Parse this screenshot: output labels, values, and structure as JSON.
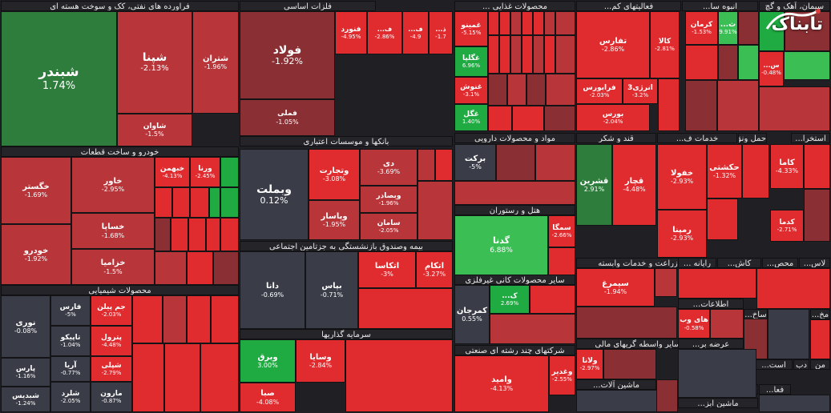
{
  "brand": {
    "logo_text": "تابناک"
  },
  "colors": {
    "dg": "#2e7d3c",
    "g": "#1faa42",
    "lg": "#3bbf55",
    "dr": "#8a2f33",
    "r": "#b8353a",
    "br": "#e02b2f",
    "neutral": "#3a3d48"
  },
  "chart_data": {
    "type": "heatmap",
    "title": "",
    "sectors": [
      {
        "name": "فراورده های نفتی، کک و سوخت هسته ای",
        "stocks": [
          {
            "name": "شبندر",
            "change": "1.74%",
            "value": 1.74
          },
          {
            "name": "شپنا",
            "change": "-2.13%",
            "value": -2.13
          },
          {
            "name": "شتران",
            "change": "-1.96%",
            "value": -1.96
          },
          {
            "name": "شاوان",
            "change": "-1.5%",
            "value": -1.5
          }
        ]
      },
      {
        "name": "فلزات اساسی",
        "stocks": [
          {
            "name": "فولاد",
            "change": "-1.92%",
            "value": -1.92
          },
          {
            "name": "فملی",
            "change": "-1.05%",
            "value": -1.05
          },
          {
            "name": "فنورد",
            "change": "-4.95%",
            "value": -4.95
          },
          {
            "name": "ف...",
            "change": "-2.86%",
            "value": -2.86
          },
          {
            "name": "ف...",
            "change": "-4.9",
            "value": -4.9
          },
          {
            "name": "ذ...",
            "change": "-1.7",
            "value": -1.7
          }
        ]
      },
      {
        "name": "محصولات غذایی ...",
        "stocks": [
          {
            "name": "غمینو",
            "change": "-5.15%",
            "value": -5.15
          },
          {
            "name": "غگلپا",
            "change": "6.96%",
            "value": 6.96
          },
          {
            "name": "غنوش",
            "change": "-3.1%",
            "value": -3.1
          },
          {
            "name": "غگل",
            "change": "1.40%",
            "value": 1.4
          }
        ]
      },
      {
        "name": "فعالیتهای کم...",
        "stocks": [
          {
            "name": "تفارس",
            "change": "-2.86%",
            "value": -2.86
          },
          {
            "name": "کالا",
            "change": "-2.81%",
            "value": -2.81
          },
          {
            "name": "فرابورس",
            "change": "-2.03%",
            "value": -2.03
          },
          {
            "name": "انرژی3",
            "change": "-3.2%",
            "value": -3.2
          },
          {
            "name": "بورس",
            "change": "-2.04%",
            "value": -2.04
          }
        ]
      },
      {
        "name": "انبوه سا...",
        "stocks": [
          {
            "name": "کرمان",
            "change": "-1.53%",
            "value": -1.53
          },
          {
            "name": "ث...",
            "change": "9.91%",
            "value": 9.91
          },
          {
            "name": "س...",
            "change": "-0.48%",
            "value": -0.48
          }
        ]
      },
      {
        "name": "سیمان، آهک و گچ",
        "stocks": []
      },
      {
        "name": "خودرو و ساخت قطعات",
        "stocks": [
          {
            "name": "خگستر",
            "change": "-1.69%",
            "value": -1.69
          },
          {
            "name": "خاور",
            "change": "-2.95%",
            "value": -2.95
          },
          {
            "name": "خبهمن",
            "change": "-4.13%",
            "value": -4.13
          },
          {
            "name": "ورنا",
            "change": "-2.45%",
            "value": -2.45
          },
          {
            "name": "خساپا",
            "change": "-1.68%",
            "value": -1.68
          },
          {
            "name": "خودرو",
            "change": "-1.92%",
            "value": -1.92
          },
          {
            "name": "خزامیا",
            "change": "-1.5%",
            "value": -1.5
          }
        ]
      },
      {
        "name": "بانکها و موسسات اعتباری",
        "stocks": [
          {
            "name": "وبملت",
            "change": "0.12%",
            "value": 0.12
          },
          {
            "name": "وتجارت",
            "change": "-3.08%",
            "value": -3.08
          },
          {
            "name": "وپاسار",
            "change": "-1.95%",
            "value": -1.95
          },
          {
            "name": "دی",
            "change": "-3.69%",
            "value": -3.69
          },
          {
            "name": "وبصادر",
            "change": "-1.96%",
            "value": -1.96
          },
          {
            "name": "سامان",
            "change": "-2.05%",
            "value": -2.05
          }
        ]
      },
      {
        "name": "مواد و محصولات دارویی",
        "stocks": [
          {
            "name": "برکت",
            "change": "-5%",
            "value": -5.0
          }
        ]
      },
      {
        "name": "قند و شکر",
        "stocks": [
          {
            "name": "قشرین",
            "change": "2.91%",
            "value": 2.91
          },
          {
            "name": "قچار",
            "change": "-4.48%",
            "value": -4.48
          }
        ]
      },
      {
        "name": "خدمات ف...",
        "stocks": [
          {
            "name": "خفولا",
            "change": "-2.93%",
            "value": -2.93
          },
          {
            "name": "رمپنا",
            "change": "-2.93%",
            "value": -2.93
          }
        ]
      },
      {
        "name": "حمل ونق...",
        "stocks": [
          {
            "name": "حکشتی",
            "change": "-1.32%",
            "value": -1.32
          },
          {
            "name": "کاما",
            "change": "-4.33%",
            "value": -4.33
          },
          {
            "name": "کدما",
            "change": "-2.71%",
            "value": -2.71
          }
        ]
      },
      {
        "name": "استخرا...",
        "stocks": []
      },
      {
        "name": "هتل و رستوران",
        "stocks": [
          {
            "name": "گدنا",
            "change": "6.88%",
            "value": 6.88
          },
          {
            "name": "سمگا",
            "change": "-2.66%",
            "value": -2.66
          }
        ]
      },
      {
        "name": "بیمه وصندوق بازنشستگی به جزتامین اجتماعی",
        "stocks": [
          {
            "name": "دانا",
            "change": "-0.69%",
            "value": -0.69
          },
          {
            "name": "بپاس",
            "change": "-0.71%",
            "value": -0.71
          },
          {
            "name": "اتکاسا",
            "change": "-3%",
            "value": -3.0
          },
          {
            "name": "اتکام",
            "change": "-3.27%",
            "value": -3.27
          }
        ]
      },
      {
        "name": "محصولات شیمیایی",
        "stocks": [
          {
            "name": "نوری",
            "change": "-0.08%",
            "value": -0.08
          },
          {
            "name": "فارس",
            "change": "-5%",
            "value": -5.0
          },
          {
            "name": "جم پیلن",
            "change": "-2.03%",
            "value": -2.03
          },
          {
            "name": "تاپیکو",
            "change": "-1.04%",
            "value": -1.04
          },
          {
            "name": "پترول",
            "change": "-4.48%",
            "value": -4.48
          },
          {
            "name": "پارس",
            "change": "-1.16%",
            "value": -1.16
          },
          {
            "name": "آریا",
            "change": "-0.77%",
            "value": -0.77
          },
          {
            "name": "شپلی",
            "change": "-2.79%",
            "value": -2.79
          },
          {
            "name": "شبدیس",
            "change": "-1.24%",
            "value": -1.24
          },
          {
            "name": "شلرد",
            "change": "-2.05%",
            "value": -2.05
          },
          {
            "name": "مارون",
            "change": "-0.87%",
            "value": -0.87
          }
        ]
      },
      {
        "name": "سرمایه گذاریها",
        "stocks": [
          {
            "name": "وبرق",
            "change": "3.00%",
            "value": 3.0
          },
          {
            "name": "وسایا",
            "change": "-2.84%",
            "value": -2.84
          },
          {
            "name": "صبا",
            "change": "-4.08%",
            "value": -4.08
          }
        ]
      },
      {
        "name": "سایر محصولات کانی غیرفلزی",
        "stocks": [
          {
            "name": "ک...",
            "change": "2.69%",
            "value": 2.69
          },
          {
            "name": "کمرجان",
            "change": "0.55%",
            "value": 0.55
          }
        ]
      },
      {
        "name": "شرکتهای چند رشته ای صنعتی",
        "stocks": [
          {
            "name": "وامید",
            "change": "-4.13%",
            "value": -4.13
          },
          {
            "name": "وغدیر",
            "change": "-2.55%",
            "value": -2.55
          }
        ]
      },
      {
        "name": "زراعت و خدمات وابسته",
        "stocks": [
          {
            "name": "سیمرغ",
            "change": "-1.94%",
            "value": -1.94
          }
        ]
      },
      {
        "name": "سایر واسطه گریهای مالی",
        "stocks": [
          {
            "name": "ولانا",
            "change": "-2.97%",
            "value": -2.97
          }
        ]
      },
      {
        "name": "اطلاعات...",
        "stocks": [
          {
            "name": "های وب",
            "change": "-0.58%",
            "value": -0.58
          }
        ]
      },
      {
        "name": "ماشین آلات...",
        "stocks": []
      },
      {
        "name": "عرضه بر...",
        "stocks": []
      },
      {
        "name": "رایانه ...",
        "stocks": []
      },
      {
        "name": "کاش...",
        "stocks": []
      },
      {
        "name": "محص...",
        "stocks": []
      },
      {
        "name": "لاس...",
        "stocks": []
      },
      {
        "name": "مخ...",
        "stocks": []
      },
      {
        "name": "من",
        "stocks": []
      },
      {
        "name": "دب",
        "stocks": []
      },
      {
        "name": "است...",
        "stocks": []
      },
      {
        "name": "ساخ...",
        "stocks": []
      },
      {
        "name": "فعا...",
        "stocks": []
      },
      {
        "name": "تجا...",
        "stocks": []
      },
      {
        "name": "ماشین ابز...",
        "stocks": []
      }
    ]
  }
}
